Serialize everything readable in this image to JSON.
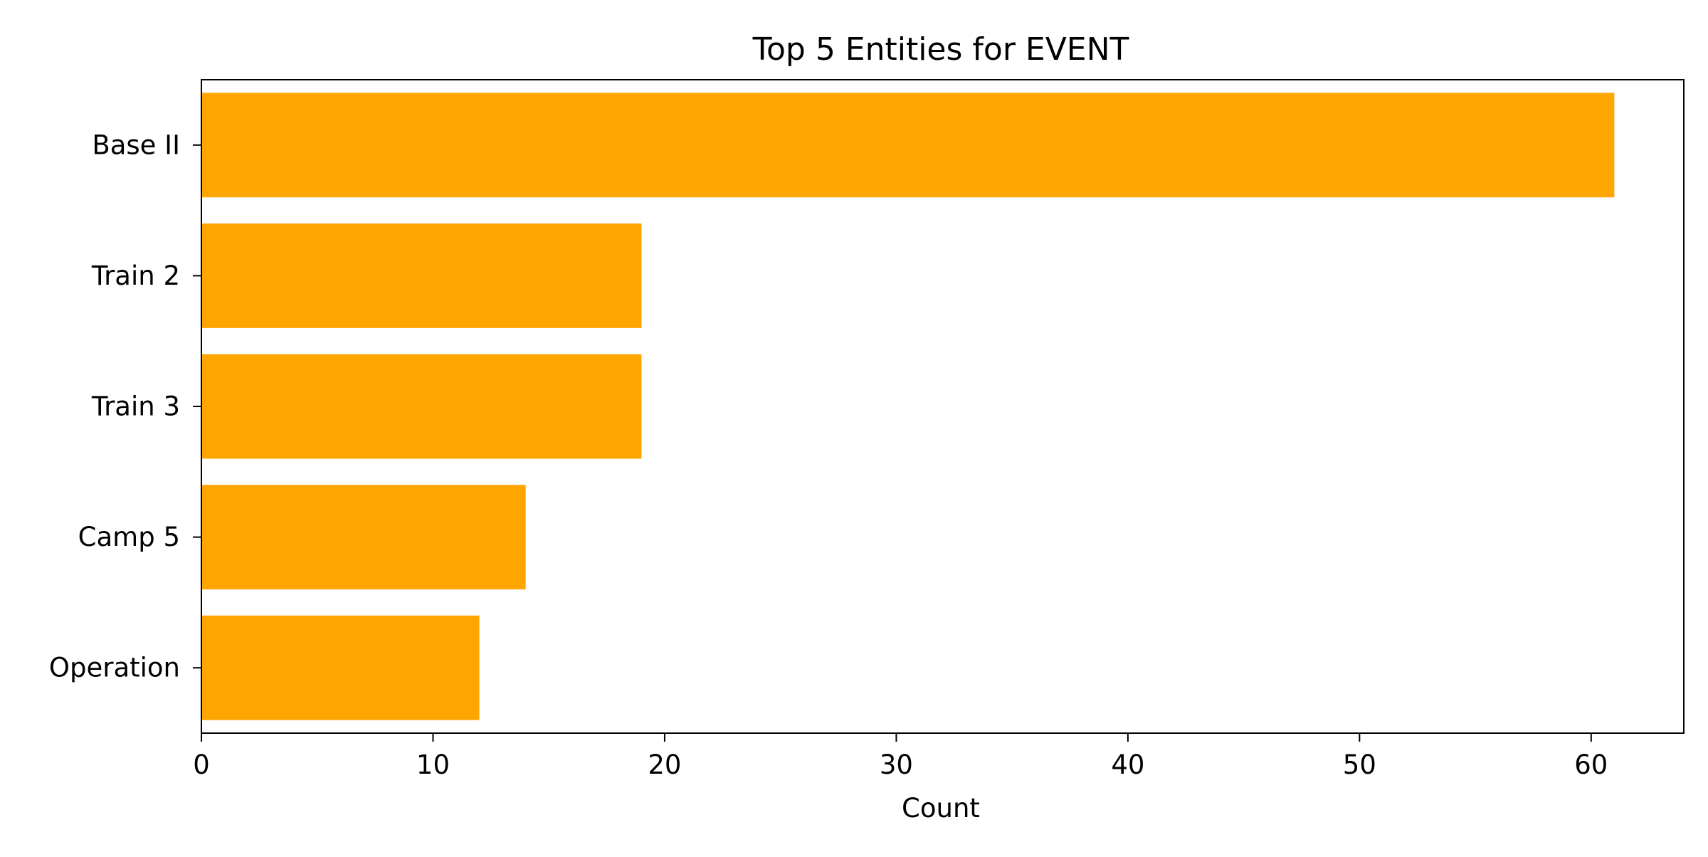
{
  "chart_data": {
    "type": "bar",
    "orientation": "horizontal",
    "title": "Top 5 Entities for EVENT",
    "xlabel": "Count",
    "ylabel": "",
    "categories": [
      "Base II",
      "Train 2",
      "Train 3",
      "Camp 5",
      "Operation"
    ],
    "values": [
      61,
      19,
      19,
      14,
      12
    ],
    "xlim": [
      0,
      64
    ],
    "xticks": [
      0,
      10,
      20,
      30,
      40,
      50,
      60
    ],
    "grid": false,
    "legend": "none",
    "bar_color": "#FFA500"
  }
}
